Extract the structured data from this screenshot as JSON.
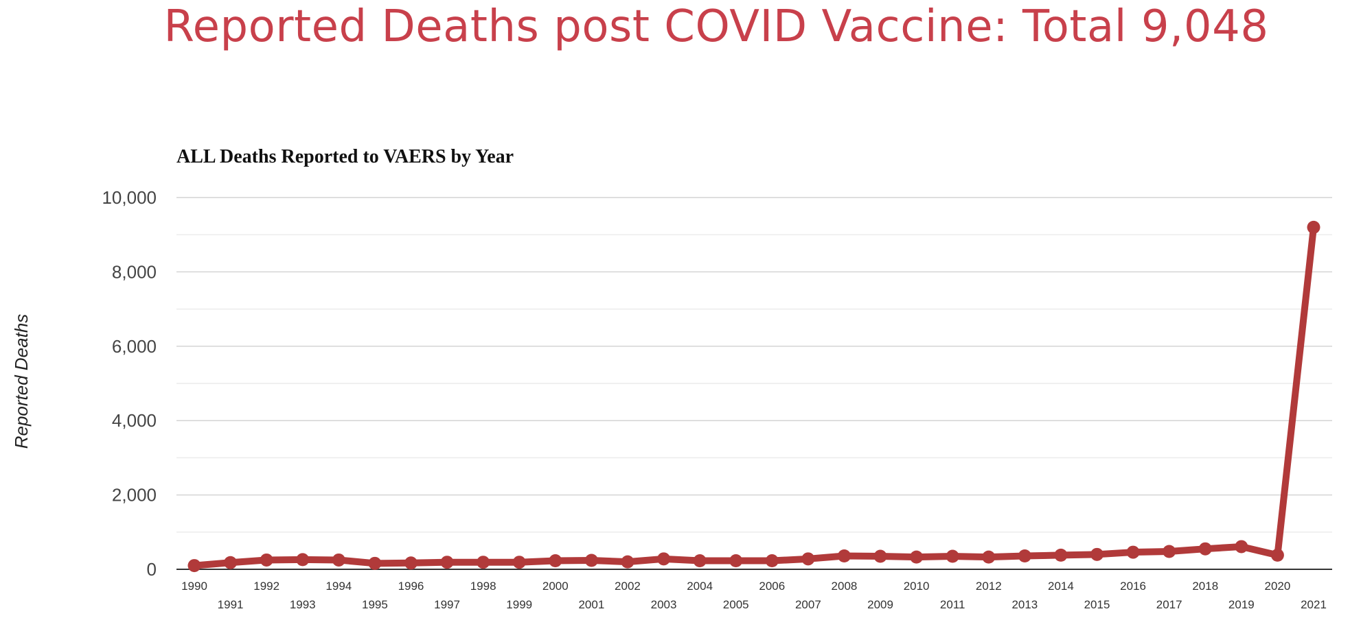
{
  "page": {
    "title": "Reported Deaths post COVID Vaccine: Total 9,048"
  },
  "colors": {
    "title": "#c8404b",
    "series": "#b13a3a",
    "gridline": "#d4d4d4",
    "minor_gridline": "#ececec",
    "baseline": "#333333"
  },
  "chart_data": {
    "type": "line",
    "title": "ALL Deaths Reported to VAERS by Year",
    "xlabel": "",
    "ylabel": "Reported Deaths",
    "ylim": [
      0,
      10000
    ],
    "yticks": [
      0,
      2000,
      4000,
      6000,
      8000,
      10000
    ],
    "ytick_labels": [
      "0",
      "2,000",
      "4,000",
      "6,000",
      "8,000",
      "10,000"
    ],
    "grid": true,
    "legend": "none",
    "x": [
      "1990",
      "1991",
      "1992",
      "1993",
      "1994",
      "1995",
      "1996",
      "1997",
      "1998",
      "1999",
      "2000",
      "2001",
      "2002",
      "2003",
      "2004",
      "2005",
      "2006",
      "2007",
      "2008",
      "2009",
      "2010",
      "2011",
      "2012",
      "2013",
      "2014",
      "2015",
      "2016",
      "2017",
      "2018",
      "2019",
      "2020",
      "2021"
    ],
    "series": [
      {
        "values": [
          100,
          180,
          250,
          260,
          250,
          160,
          170,
          190,
          190,
          190,
          230,
          240,
          200,
          280,
          230,
          230,
          230,
          280,
          360,
          350,
          330,
          350,
          330,
          360,
          380,
          400,
          460,
          480,
          550,
          610,
          380,
          9200
        ]
      }
    ]
  }
}
